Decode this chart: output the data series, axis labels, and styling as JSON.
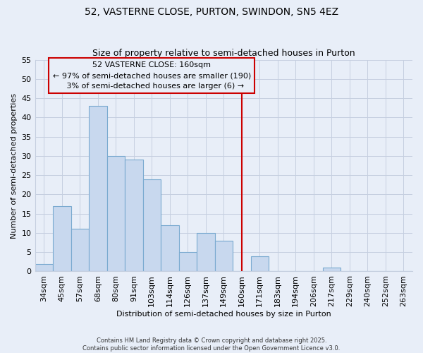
{
  "title": "52, VASTERNE CLOSE, PURTON, SWINDON, SN5 4EZ",
  "subtitle": "Size of property relative to semi-detached houses in Purton",
  "xlabel": "Distribution of semi-detached houses by size in Purton",
  "ylabel": "Number of semi-detached properties",
  "bar_labels": [
    "34sqm",
    "45sqm",
    "57sqm",
    "68sqm",
    "80sqm",
    "91sqm",
    "103sqm",
    "114sqm",
    "126sqm",
    "137sqm",
    "149sqm",
    "160sqm",
    "171sqm",
    "183sqm",
    "194sqm",
    "206sqm",
    "217sqm",
    "229sqm",
    "240sqm",
    "252sqm",
    "263sqm"
  ],
  "bar_values": [
    2,
    17,
    11,
    43,
    30,
    29,
    24,
    12,
    5,
    10,
    8,
    0,
    4,
    0,
    0,
    0,
    1,
    0,
    0,
    0,
    0
  ],
  "bar_color": "#c8d8ee",
  "vline_index": 11,
  "ylim": [
    0,
    55
  ],
  "yticks": [
    0,
    5,
    10,
    15,
    20,
    25,
    30,
    35,
    40,
    45,
    50,
    55
  ],
  "annotation_title": "52 VASTERNE CLOSE: 160sqm",
  "annotation_line1": "← 97% of semi-detached houses are smaller (190)",
  "annotation_line2": "   3% of semi-detached houses are larger (6) →",
  "footer_line1": "Contains HM Land Registry data © Crown copyright and database right 2025.",
  "footer_line2": "Contains public sector information licensed under the Open Government Licence v3.0.",
  "background_color": "#e8eef8",
  "bar_edge_color": "#7aaad0",
  "vline_color": "#cc0000",
  "annotation_box_edge": "#cc0000",
  "grid_color": "#c5cfe0",
  "title_fontsize": 10,
  "subtitle_fontsize": 9,
  "axis_label_fontsize": 8,
  "tick_fontsize": 8,
  "annotation_fontsize": 8
}
